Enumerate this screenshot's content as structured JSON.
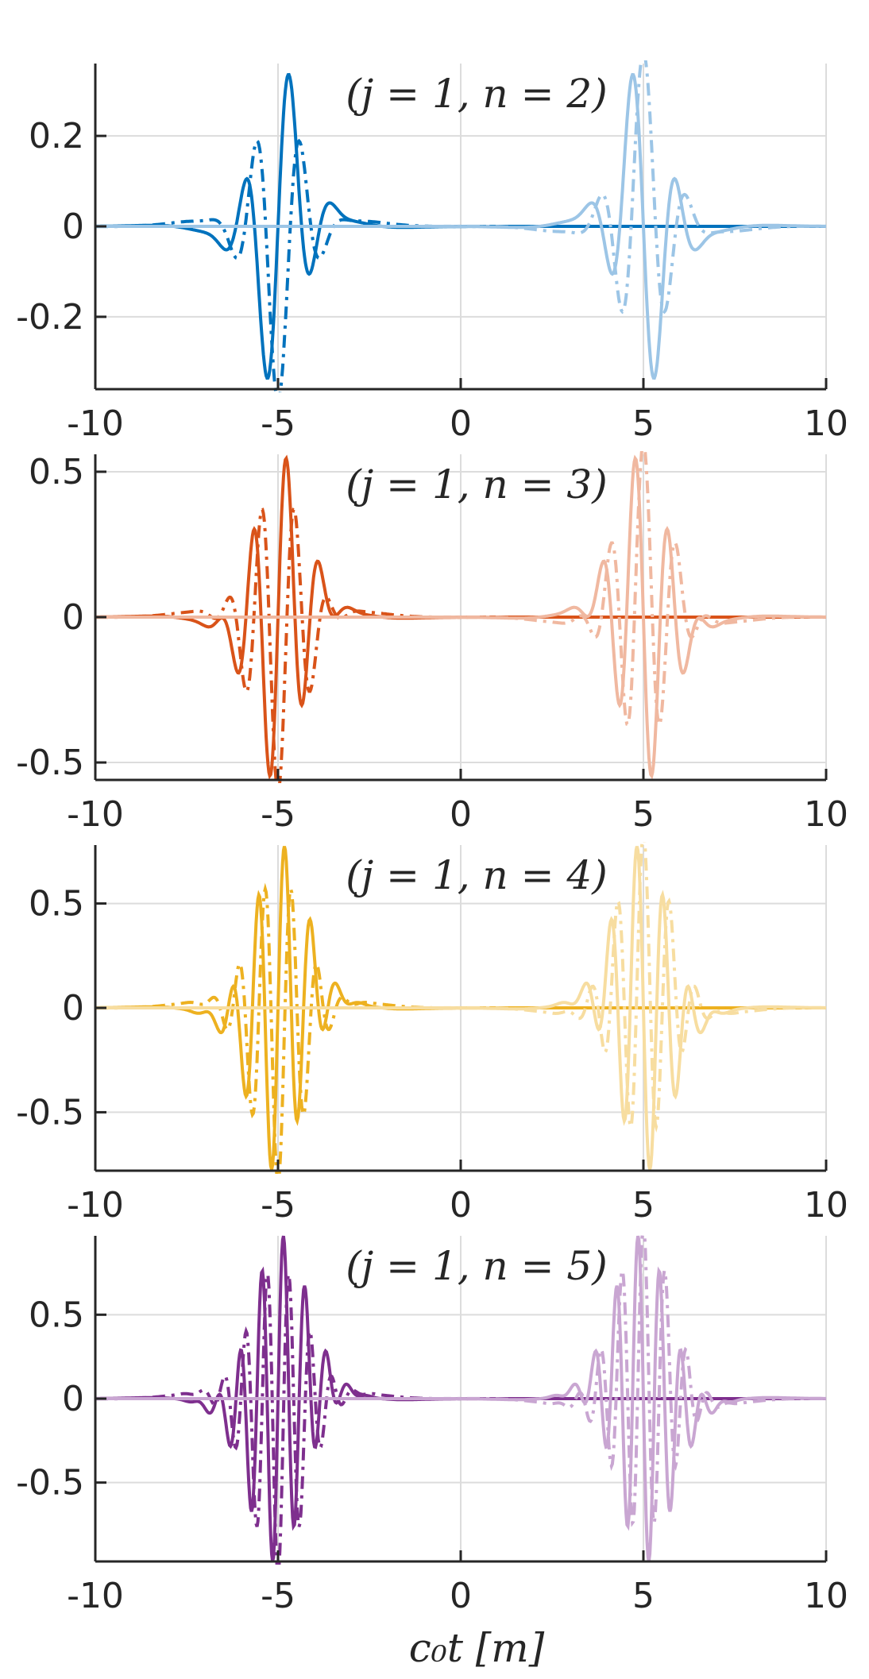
{
  "chart_data": [
    {
      "type": "line",
      "title": "(j = 1, n = 2)",
      "n": 2,
      "color": "#0072BD",
      "color_faded": "#9CC5E6",
      "xlim": [
        -10,
        10
      ],
      "ylim": [
        -0.36,
        0.36
      ],
      "xticks": [
        "-10",
        "-5",
        "0",
        "5",
        "10"
      ],
      "yticks": [
        {
          "value": 0.2,
          "label": "0.2"
        },
        {
          "value": 0,
          "label": "0"
        },
        {
          "value": -0.2,
          "label": "-0.2"
        }
      ],
      "amplitude": 0.36,
      "pulse_centers": [
        -5,
        5
      ],
      "series": [
        {
          "style": "solid",
          "center": -5,
          "faded": false
        },
        {
          "style": "dashdot",
          "center": -5,
          "faded": false
        },
        {
          "style": "solid",
          "center": 5,
          "faded": true
        },
        {
          "style": "dashdot",
          "center": 5,
          "faded": true
        }
      ]
    },
    {
      "type": "line",
      "title": "(j = 1, n = 3)",
      "n": 3,
      "color": "#D95319",
      "color_faded": "#F0B8A0",
      "xlim": [
        -10,
        10
      ],
      "ylim": [
        -0.56,
        0.56
      ],
      "xticks": [
        "-10",
        "-5",
        "0",
        "5",
        "10"
      ],
      "yticks": [
        {
          "value": 0.5,
          "label": "0.5"
        },
        {
          "value": 0,
          "label": "0"
        },
        {
          "value": -0.5,
          "label": "-0.5"
        }
      ],
      "amplitude": 0.56,
      "pulse_centers": [
        -5,
        5
      ],
      "series": [
        {
          "style": "solid",
          "center": -5,
          "faded": false
        },
        {
          "style": "dashdot",
          "center": -5,
          "faded": false
        },
        {
          "style": "solid",
          "center": 5,
          "faded": true
        },
        {
          "style": "dashdot",
          "center": 5,
          "faded": true
        }
      ]
    },
    {
      "type": "line",
      "title": "(j = 1, n = 4)",
      "n": 4,
      "color": "#EDB120",
      "color_faded": "#F7DDA0",
      "xlim": [
        -10,
        10
      ],
      "ylim": [
        -0.78,
        0.78
      ],
      "xticks": [
        "-10",
        "-5",
        "0",
        "5",
        "10"
      ],
      "yticks": [
        {
          "value": 0.5,
          "label": "0.5"
        },
        {
          "value": 0,
          "label": "0"
        },
        {
          "value": -0.5,
          "label": "-0.5"
        }
      ],
      "amplitude": 0.78,
      "pulse_centers": [
        -5,
        5
      ],
      "series": [
        {
          "style": "solid",
          "center": -5,
          "faded": false
        },
        {
          "style": "dashdot",
          "center": -5,
          "faded": false
        },
        {
          "style": "solid",
          "center": 5,
          "faded": true
        },
        {
          "style": "dashdot",
          "center": 5,
          "faded": true
        }
      ]
    },
    {
      "type": "line",
      "title": "(j = 1, n = 5)",
      "n": 5,
      "color": "#7E2F8E",
      "color_faded": "#C9A6D2",
      "xlim": [
        -10,
        10
      ],
      "ylim": [
        -0.97,
        0.97
      ],
      "xticks": [
        "-10",
        "-5",
        "0",
        "5",
        "10"
      ],
      "yticks": [
        {
          "value": 0.5,
          "label": "0.5"
        },
        {
          "value": 0,
          "label": "0"
        },
        {
          "value": -0.5,
          "label": "-0.5"
        }
      ],
      "amplitude": 0.97,
      "pulse_centers": [
        -5,
        5
      ],
      "series": [
        {
          "style": "solid",
          "center": -5,
          "faded": false
        },
        {
          "style": "dashdot",
          "center": -5,
          "faded": false
        },
        {
          "style": "solid",
          "center": 5,
          "faded": true
        },
        {
          "style": "dashdot",
          "center": 5,
          "faded": true
        }
      ]
    }
  ],
  "xlabel": "c₀t [m]",
  "grid": true,
  "axis_color": "#262626",
  "grid_color": "#DCDCDC"
}
